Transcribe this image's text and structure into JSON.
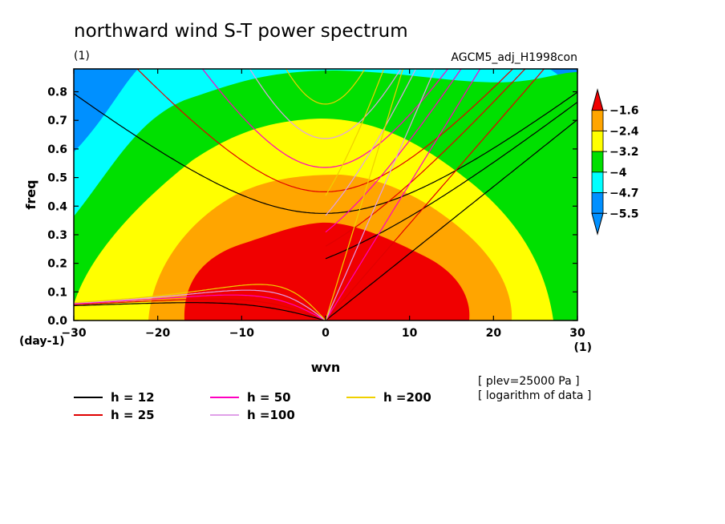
{
  "chart_data": {
    "type": "heatmap",
    "title": "northward wind S-T power spectrum",
    "unit_top_left": "(1)",
    "experiment": "AGCM5_adj_H1998con",
    "xlabel": "wvn",
    "ylabel": "freq",
    "x_unit": "(1)",
    "y_unit": "(day-1)",
    "xlim": [
      -30,
      30
    ],
    "ylim": [
      0,
      0.88
    ],
    "x_ticks": [
      -30,
      -20,
      -10,
      0,
      10,
      20,
      30
    ],
    "y_ticks": [
      0.0,
      0.1,
      0.2,
      0.3,
      0.4,
      0.5,
      0.6,
      0.7,
      0.8
    ],
    "colorbar": {
      "levels": [
        -1.6,
        -2.4,
        -3.2,
        -4,
        -4.7,
        -5.5
      ],
      "level_labels": [
        "−1.6",
        "−2.4",
        "−3.2",
        "−4",
        "−4.7",
        "−5.5"
      ],
      "colors": [
        "#f00000",
        "#ffa500",
        "#ffff00",
        "#00e000",
        "#00ffff",
        "#0090ff"
      ]
    },
    "notes": [
      "[ plev=25000 Pa ]",
      "[ logarithm of data ]"
    ],
    "series": [
      {
        "name": "h = 12",
        "color": "#000000"
      },
      {
        "name": "h = 25",
        "color": "#e00000"
      },
      {
        "name": "h = 50",
        "color": "#ff00c0"
      },
      {
        "name": "h =100",
        "color": "#e0a0e8"
      },
      {
        "name": "h =200",
        "color": "#f0d000"
      }
    ]
  }
}
